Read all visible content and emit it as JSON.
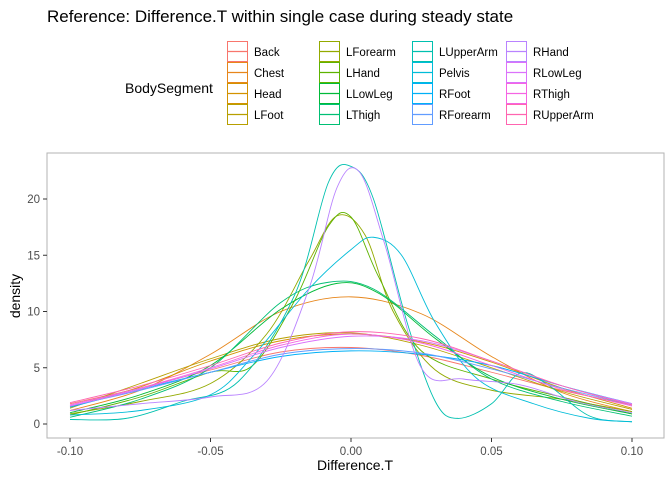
{
  "chart_data": {
    "type": "line",
    "title": "Reference: Difference.T within single case during steady state",
    "xlabel": "Difference.T",
    "ylabel": "density",
    "xlim": [
      -0.1,
      0.1
    ],
    "ylim": [
      0,
      23
    ],
    "x_ticks": [
      -0.1,
      -0.05,
      0.0,
      0.05,
      0.1
    ],
    "x_tick_labels": [
      "-0.10",
      "-0.05",
      "0.00",
      "0.05",
      "0.10"
    ],
    "y_ticks": [
      0,
      5,
      10,
      15,
      20
    ],
    "y_tick_labels": [
      "0",
      "5",
      "10",
      "15",
      "20"
    ],
    "grid": false,
    "legend": {
      "title": "BodySegment",
      "placement": "top"
    },
    "series": [
      {
        "name": "Back",
        "color": "#F8766D",
        "values": [
          [
            -0.1,
            1.8
          ],
          [
            -0.075,
            3.2
          ],
          [
            -0.05,
            4.8
          ],
          [
            -0.025,
            6.4
          ],
          [
            0.0,
            6.8
          ],
          [
            0.025,
            6.1
          ],
          [
            0.05,
            4.6
          ],
          [
            0.075,
            3.0
          ],
          [
            0.1,
            1.7
          ]
        ]
      },
      {
        "name": "Chest",
        "color": "#E7861B",
        "values": [
          [
            -0.1,
            1.2
          ],
          [
            -0.075,
            3.0
          ],
          [
            -0.05,
            6.2
          ],
          [
            -0.025,
            10.0
          ],
          [
            0.0,
            11.3
          ],
          [
            0.025,
            9.8
          ],
          [
            0.05,
            6.0
          ],
          [
            0.075,
            2.8
          ],
          [
            0.1,
            1.1
          ]
        ]
      },
      {
        "name": "Head",
        "color": "#D39200",
        "values": [
          [
            -0.1,
            1.5
          ],
          [
            -0.075,
            3.3
          ],
          [
            -0.05,
            5.6
          ],
          [
            -0.025,
            7.4
          ],
          [
            0.0,
            8.0
          ],
          [
            0.025,
            7.3
          ],
          [
            0.05,
            5.5
          ],
          [
            0.075,
            3.2
          ],
          [
            0.1,
            1.4
          ]
        ]
      },
      {
        "name": "LFoot",
        "color": "#B79F00",
        "values": [
          [
            -0.1,
            1.4
          ],
          [
            -0.075,
            3.6
          ],
          [
            -0.05,
            5.8
          ],
          [
            -0.025,
            7.6
          ],
          [
            0.0,
            8.1
          ],
          [
            0.025,
            7.0
          ],
          [
            0.05,
            5.0
          ],
          [
            0.075,
            2.9
          ],
          [
            0.1,
            1.3
          ]
        ]
      },
      {
        "name": "LForearm",
        "color": "#93AA00",
        "values": [
          [
            -0.1,
            0.9
          ],
          [
            -0.075,
            2.0
          ],
          [
            -0.05,
            3.6
          ],
          [
            -0.03,
            8.0
          ],
          [
            -0.015,
            14.5
          ],
          [
            -0.005,
            18.5
          ],
          [
            0.005,
            16.8
          ],
          [
            0.015,
            10.0
          ],
          [
            0.03,
            4.8
          ],
          [
            0.05,
            3.0
          ],
          [
            0.075,
            2.2
          ],
          [
            0.1,
            1.1
          ]
        ]
      },
      {
        "name": "LHand",
        "color": "#5EB300",
        "values": [
          [
            -0.1,
            0.8
          ],
          [
            -0.075,
            2.4
          ],
          [
            -0.05,
            4.6
          ],
          [
            -0.035,
            5.2
          ],
          [
            -0.02,
            11.0
          ],
          [
            -0.008,
            17.6
          ],
          [
            0.0,
            18.4
          ],
          [
            0.01,
            13.0
          ],
          [
            0.025,
            6.5
          ],
          [
            0.05,
            4.0
          ],
          [
            0.075,
            2.4
          ],
          [
            0.1,
            0.9
          ]
        ]
      },
      {
        "name": "LLowLeg",
        "color": "#00BA38",
        "values": [
          [
            -0.1,
            1.0
          ],
          [
            -0.075,
            2.6
          ],
          [
            -0.05,
            5.2
          ],
          [
            -0.025,
            10.2
          ],
          [
            -0.005,
            12.5
          ],
          [
            0.01,
            11.6
          ],
          [
            0.03,
            7.6
          ],
          [
            0.05,
            4.2
          ],
          [
            0.075,
            2.2
          ],
          [
            0.1,
            0.9
          ]
        ]
      },
      {
        "name": "LThigh",
        "color": "#00BF74",
        "values": [
          [
            -0.1,
            0.6
          ],
          [
            -0.075,
            2.2
          ],
          [
            -0.05,
            5.0
          ],
          [
            -0.025,
            10.8
          ],
          [
            -0.008,
            12.6
          ],
          [
            0.008,
            12.0
          ],
          [
            0.03,
            7.8
          ],
          [
            0.05,
            4.0
          ],
          [
            0.075,
            2.0
          ],
          [
            0.1,
            0.7
          ]
        ]
      },
      {
        "name": "LUpperArm",
        "color": "#00C0AF",
        "values": [
          [
            -0.1,
            0.4
          ],
          [
            -0.08,
            0.5
          ],
          [
            -0.06,
            2.0
          ],
          [
            -0.04,
            3.8
          ],
          [
            -0.02,
            11.5
          ],
          [
            -0.008,
            21.5
          ],
          [
            0.0,
            22.9
          ],
          [
            0.008,
            20.0
          ],
          [
            0.02,
            9.0
          ],
          [
            0.03,
            2.0
          ],
          [
            0.038,
            0.5
          ],
          [
            0.05,
            1.8
          ],
          [
            0.06,
            4.5
          ],
          [
            0.07,
            3.5
          ],
          [
            0.085,
            0.7
          ],
          [
            0.1,
            0.2
          ]
        ]
      },
      {
        "name": "Pelvis",
        "color": "#00BCD8",
        "values": [
          [
            -0.1,
            0.8
          ],
          [
            -0.075,
            1.2
          ],
          [
            -0.05,
            2.6
          ],
          [
            -0.035,
            6.0
          ],
          [
            -0.015,
            12.0
          ],
          [
            0.0,
            15.5
          ],
          [
            0.008,
            16.6
          ],
          [
            0.018,
            15.0
          ],
          [
            0.03,
            9.0
          ],
          [
            0.045,
            4.0
          ],
          [
            0.065,
            1.8
          ],
          [
            0.085,
            0.5
          ],
          [
            0.1,
            0.2
          ]
        ]
      },
      {
        "name": "RFoot",
        "color": "#00B0F6",
        "values": [
          [
            -0.1,
            1.5
          ],
          [
            -0.075,
            3.1
          ],
          [
            -0.05,
            4.6
          ],
          [
            -0.025,
            6.0
          ],
          [
            0.0,
            6.5
          ],
          [
            0.025,
            6.2
          ],
          [
            0.05,
            5.2
          ],
          [
            0.075,
            3.4
          ],
          [
            0.1,
            1.8
          ]
        ]
      },
      {
        "name": "RForearm",
        "color": "#619CFF",
        "values": [
          [
            -0.1,
            1.6
          ],
          [
            -0.075,
            3.0
          ],
          [
            -0.05,
            4.6
          ],
          [
            -0.025,
            6.2
          ],
          [
            0.0,
            6.7
          ],
          [
            0.025,
            6.3
          ],
          [
            0.05,
            4.9
          ],
          [
            0.075,
            3.2
          ],
          [
            0.1,
            1.7
          ]
        ]
      },
      {
        "name": "RHand",
        "color": "#B983FF",
        "values": [
          [
            -0.1,
            1.2
          ],
          [
            -0.075,
            1.8
          ],
          [
            -0.05,
            2.4
          ],
          [
            -0.03,
            3.8
          ],
          [
            -0.015,
            12.0
          ],
          [
            -0.005,
            21.0
          ],
          [
            0.003,
            22.4
          ],
          [
            0.012,
            16.0
          ],
          [
            0.025,
            5.0
          ],
          [
            0.04,
            4.0
          ],
          [
            0.06,
            3.5
          ],
          [
            0.08,
            2.0
          ],
          [
            0.1,
            1.0
          ]
        ]
      },
      {
        "name": "RLowLeg",
        "color": "#DB72FB",
        "values": [
          [
            -0.1,
            1.6
          ],
          [
            -0.075,
            3.1
          ],
          [
            -0.05,
            4.9
          ],
          [
            -0.025,
            6.8
          ],
          [
            0.0,
            7.8
          ],
          [
            0.025,
            7.4
          ],
          [
            0.05,
            5.6
          ],
          [
            0.075,
            3.4
          ],
          [
            0.1,
            1.8
          ]
        ]
      },
      {
        "name": "RThigh",
        "color": "#F564E3",
        "values": [
          [
            -0.1,
            1.7
          ],
          [
            -0.075,
            3.2
          ],
          [
            -0.05,
            5.0
          ],
          [
            -0.025,
            7.0
          ],
          [
            0.0,
            8.0
          ],
          [
            0.025,
            7.2
          ],
          [
            0.05,
            5.2
          ],
          [
            0.075,
            3.1
          ],
          [
            0.1,
            1.6
          ]
        ]
      },
      {
        "name": "RUpperArm",
        "color": "#FF64B0",
        "values": [
          [
            -0.1,
            1.9
          ],
          [
            -0.075,
            3.4
          ],
          [
            -0.05,
            5.2
          ],
          [
            -0.025,
            7.2
          ],
          [
            0.0,
            8.2
          ],
          [
            0.025,
            7.6
          ],
          [
            0.05,
            5.6
          ],
          [
            0.075,
            3.4
          ],
          [
            0.1,
            1.7
          ]
        ]
      }
    ]
  }
}
